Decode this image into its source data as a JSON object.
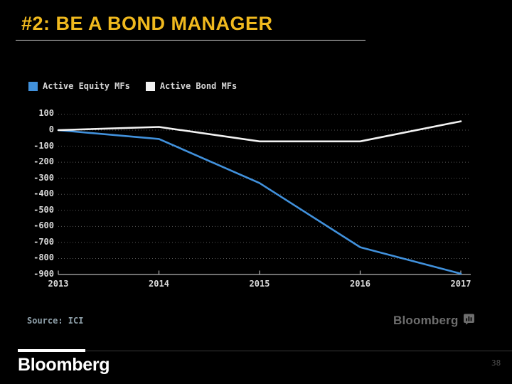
{
  "slide": {
    "title": "#2: BE A BOND MANAGER",
    "footer_wordmark": "Bloomberg",
    "page_number": "38"
  },
  "chart": {
    "legend": [
      {
        "label": "Active Equity MFs",
        "color": "#4191dc"
      },
      {
        "label": "Active Bond MFs",
        "color": "#f2f2f2"
      }
    ],
    "source_text": "Source: ICI",
    "watermark": "Bloomberg",
    "colors": {
      "title_yellow": "#f0b91e",
      "axis_text": "#d9d9d9",
      "gridline": "#565656",
      "axis_line": "#b3b3b3",
      "equity_blue": "#4191dc",
      "bond_white": "#f2f2f2",
      "source_gray": "#8fa0aa",
      "watermark_gray": "#6e6e6e"
    }
  },
  "chart_data": {
    "type": "line",
    "title": "",
    "xlabel": "",
    "ylabel": "",
    "x": [
      2013,
      2014,
      2015,
      2016,
      2017
    ],
    "series": [
      {
        "name": "Active Equity MFs",
        "color": "#4191dc",
        "values": [
          0,
          -55,
          -330,
          -730,
          -895
        ]
      },
      {
        "name": "Active Bond MFs",
        "color": "#f2f2f2",
        "values": [
          0,
          20,
          -70,
          -70,
          55
        ]
      }
    ],
    "ylim": [
      -900,
      100
    ],
    "yticks": [
      100,
      0,
      -100,
      -200,
      -300,
      -400,
      -500,
      -600,
      -700,
      -800,
      -900
    ],
    "grid": "horizontal-dotted",
    "legend_position": "top-left"
  }
}
